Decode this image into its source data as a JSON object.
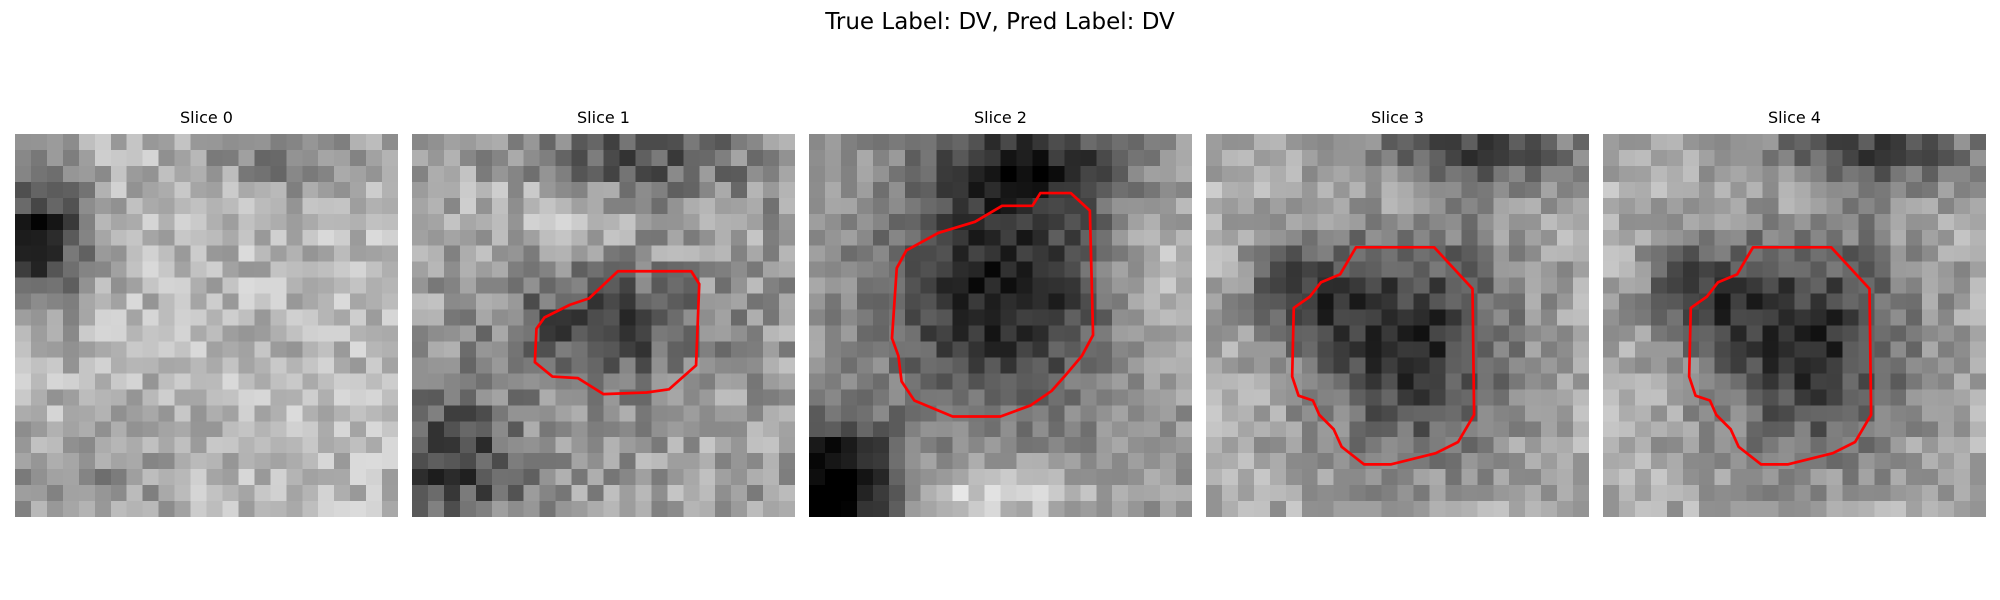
{
  "figure": {
    "title": "True Label: DV, Pred Label: DV"
  },
  "slices": [
    {
      "title": "Slice 0",
      "has_contour": false
    },
    {
      "title": "Slice 1",
      "has_contour": true
    },
    {
      "title": "Slice 2",
      "has_contour": true
    },
    {
      "title": "Slice 3",
      "has_contour": true
    },
    {
      "title": "Slice 4",
      "has_contour": true
    }
  ],
  "colors": {
    "contour": "#ff0000"
  }
}
